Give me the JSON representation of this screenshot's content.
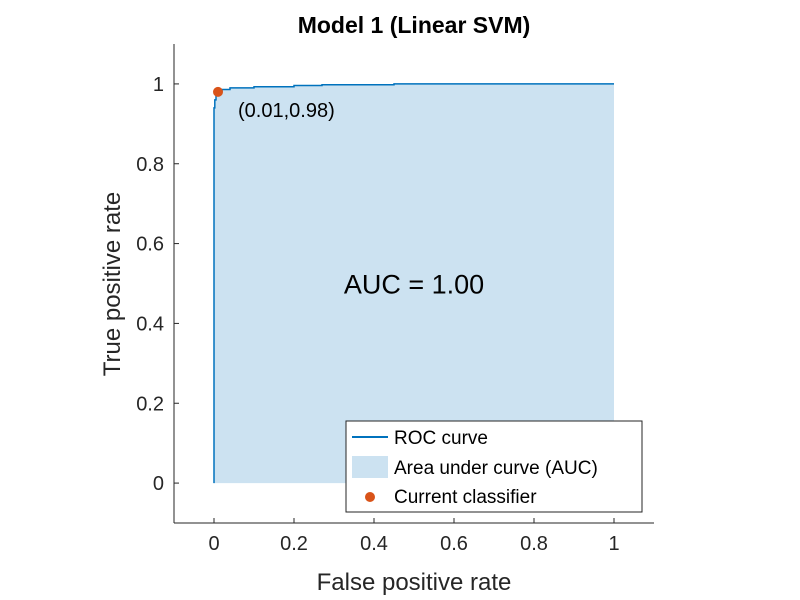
{
  "chart_data": {
    "type": "line",
    "title": "Model 1 (Linear SVM)",
    "xlabel": "False positive rate",
    "ylabel": "True positive rate",
    "xlim": [
      -0.1,
      1.1
    ],
    "ylim": [
      -0.1,
      1.1
    ],
    "xticks": [
      0,
      0.2,
      0.4,
      0.6,
      0.8,
      1
    ],
    "xtick_labels": [
      "0",
      "0.2",
      "0.4",
      "0.6",
      "0.8",
      "1"
    ],
    "yticks": [
      0,
      0.2,
      0.4,
      0.6,
      0.8,
      1
    ],
    "ytick_labels": [
      "0",
      "0.2",
      "0.4",
      "0.6",
      "0.8",
      "1"
    ],
    "grid": false,
    "legend_position": "bottom-right",
    "series": [
      {
        "name": "ROC curve",
        "kind": "line",
        "color": "#0072BD",
        "x": [
          0,
          0,
          0.002,
          0.002,
          0.005,
          0.005,
          0.01,
          0.01,
          0.02,
          0.02,
          0.04,
          0.04,
          0.1,
          0.1,
          0.2,
          0.2,
          0.27,
          0.27,
          0.45,
          0.45,
          1.0
        ],
        "y": [
          0,
          0.94,
          0.94,
          0.96,
          0.96,
          0.975,
          0.975,
          0.98,
          0.98,
          0.986,
          0.986,
          0.99,
          0.99,
          0.993,
          0.993,
          0.996,
          0.996,
          0.998,
          0.998,
          1.0,
          1.0
        ]
      },
      {
        "name": "Area under curve (AUC)",
        "kind": "area",
        "color": "#CCE2F1"
      },
      {
        "name": "Current classifier",
        "kind": "point",
        "color": "#D95319",
        "x": [
          0.01
        ],
        "y": [
          0.98
        ]
      }
    ],
    "annotations": [
      {
        "text": "(0.01,0.98)",
        "x": 0.01,
        "y": 0.98
      },
      {
        "text": "AUC = 1.00"
      }
    ]
  }
}
